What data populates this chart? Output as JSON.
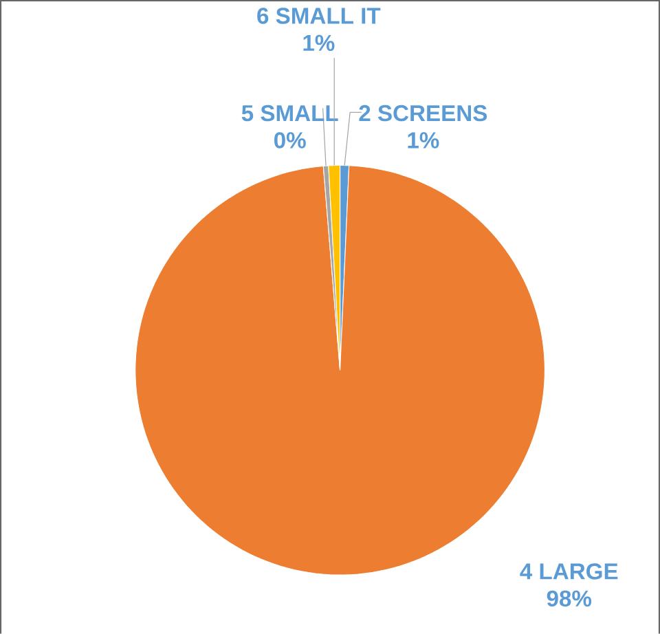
{
  "chart_data": {
    "type": "pie",
    "categories": [
      "2 SCREENS",
      "4 LARGE",
      "5 SMALL",
      "6 SMALL IT"
    ],
    "values": [
      0.7,
      98.0,
      0.4,
      0.9
    ],
    "value_labels": [
      "1%",
      "98%",
      "0%",
      "1%"
    ],
    "colors": [
      "#5b9bd5",
      "#ed7d31",
      "#a5a5a5",
      "#ffc000"
    ]
  }
}
